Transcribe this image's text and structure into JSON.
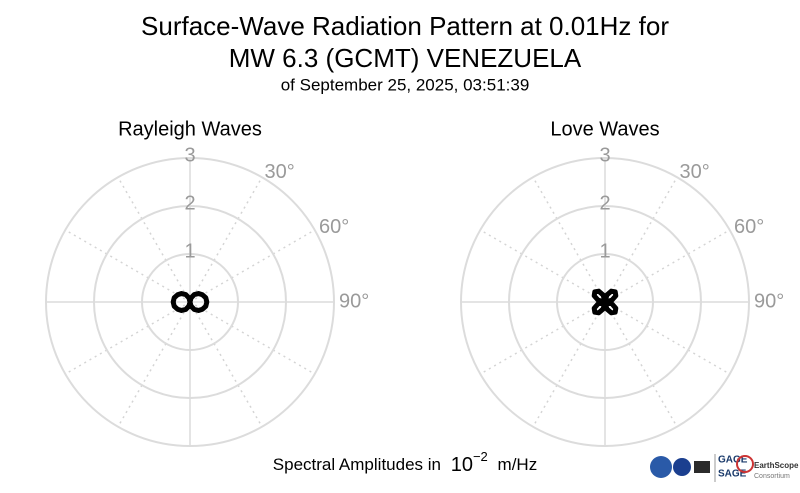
{
  "title": [
    "Surface-Wave Radiation Pattern at 0.01Hz for",
    "MW 6.3 (GCMT) VENEZUELA"
  ],
  "subtitle": "of September 25, 2025, 03:51:39",
  "footer": {
    "text": "Spectral Amplitudes in",
    "base": "10",
    "exponent": "−2",
    "unit": "m/Hz"
  },
  "logos": {
    "gage": "GAGE",
    "sage": "SAGE",
    "earthscope": "EarthScope",
    "consortium": "Consortium"
  },
  "chart_data": [
    {
      "type": "polar",
      "title": "Rayleigh Waves",
      "color": "#000000",
      "theta": [
        0,
        15,
        30,
        45,
        60,
        75,
        90,
        105,
        120,
        135,
        150,
        165,
        180,
        195,
        210,
        225,
        240,
        255,
        270,
        285,
        300,
        315,
        330,
        345
      ],
      "values": [
        0,
        0.09,
        0.18,
        0.25,
        0.3,
        0.34,
        0.35,
        0.34,
        0.3,
        0.25,
        0.18,
        0.09,
        0,
        0.09,
        0.18,
        0.25,
        0.3,
        0.34,
        0.35,
        0.34,
        0.3,
        0.25,
        0.18,
        0.09
      ],
      "rlim": [
        0,
        3
      ],
      "rticks": [
        1,
        2,
        3
      ],
      "theta_grid": [
        0,
        30,
        60,
        90,
        120,
        150,
        180,
        210,
        240,
        270,
        300,
        330
      ],
      "thetaticks": [
        {
          "value": 30,
          "label": "30°"
        },
        {
          "value": 60,
          "label": "60°"
        },
        {
          "value": 90,
          "label": "90°"
        }
      ]
    },
    {
      "type": "polar",
      "title": "Love Waves",
      "color": "#000000",
      "theta": [
        0,
        15,
        30,
        45,
        60,
        75,
        90,
        105,
        120,
        135,
        150,
        165,
        180,
        195,
        210,
        225,
        240,
        255,
        270,
        285,
        300,
        315,
        330,
        345
      ],
      "values": [
        0,
        0.15,
        0.26,
        0.3,
        0.26,
        0.15,
        0,
        0.15,
        0.26,
        0.3,
        0.26,
        0.15,
        0,
        0.15,
        0.26,
        0.3,
        0.26,
        0.15,
        0,
        0.15,
        0.26,
        0.3,
        0.26,
        0.15
      ],
      "rlim": [
        0,
        3
      ],
      "rticks": [
        1,
        2,
        3
      ],
      "theta_grid": [
        0,
        30,
        60,
        90,
        120,
        150,
        180,
        210,
        240,
        270,
        300,
        330
      ],
      "thetaticks": [
        {
          "value": 30,
          "label": "30°"
        },
        {
          "value": 60,
          "label": "60°"
        },
        {
          "value": 90,
          "label": "90°"
        }
      ]
    }
  ]
}
